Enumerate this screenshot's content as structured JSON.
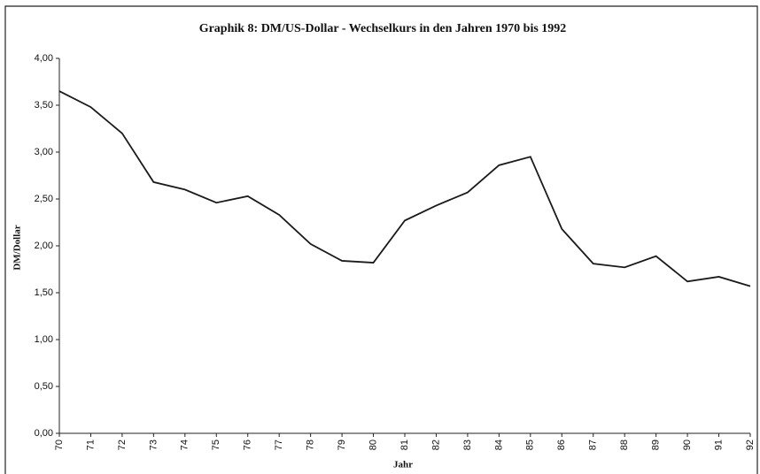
{
  "chart_data": {
    "type": "line",
    "title": "Graphik 8: DM/US-Dollar -  Wechselkurs in den Jahren 1970 bis 1992",
    "y_label": "DM/Dollar",
    "x_label": "Jahr",
    "categories": [
      "70",
      "71",
      "72",
      "73",
      "74",
      "75",
      "76",
      "77",
      "78",
      "79",
      "80",
      "81",
      "82",
      "83",
      "84",
      "85",
      "86",
      "87",
      "88",
      "89",
      "90",
      "91",
      "92"
    ],
    "values": [
      3.65,
      3.48,
      3.2,
      2.68,
      2.6,
      2.46,
      2.53,
      2.33,
      2.02,
      1.84,
      1.82,
      2.27,
      2.43,
      2.57,
      2.86,
      2.95,
      2.18,
      1.81,
      1.77,
      1.89,
      1.62,
      1.67,
      1.57
    ],
    "color": "#1a1a1a",
    "ylim": [
      0,
      4
    ],
    "yticks": [
      {
        "value": 0,
        "label": "0,00"
      },
      {
        "value": 0.5,
        "label": "0,50"
      },
      {
        "value": 1,
        "label": "1,00"
      },
      {
        "value": 1.5,
        "label": "1,50"
      },
      {
        "value": 2,
        "label": "2,00"
      },
      {
        "value": 2.5,
        "label": "2,50"
      },
      {
        "value": 3,
        "label": "3,00"
      },
      {
        "value": 3.5,
        "label": "3,50"
      },
      {
        "value": 4,
        "label": "4,00"
      }
    ],
    "grid": false
  }
}
